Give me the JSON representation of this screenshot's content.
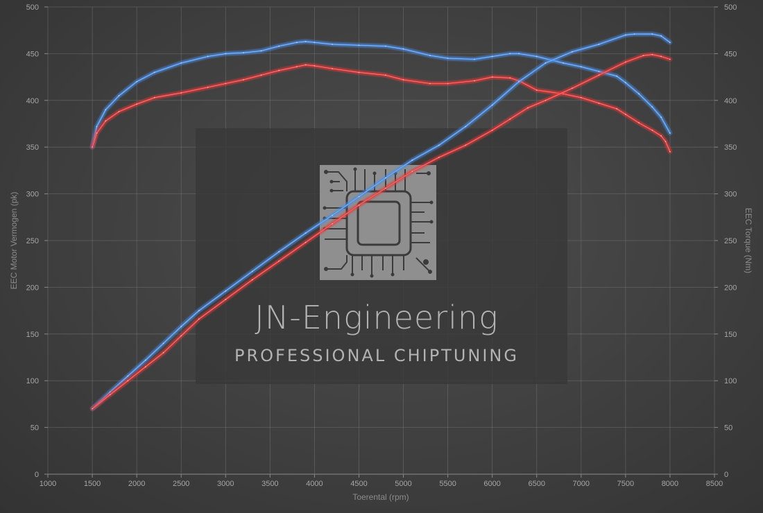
{
  "chart_data": {
    "type": "line",
    "xlabel": "Toerental (rpm)",
    "ylabel": "EEC Motor Vermogen (pk)",
    "y2label": "EEC Torque (Nm)",
    "xlim": [
      1000,
      8500
    ],
    "ylim": [
      0,
      500
    ],
    "y2lim": [
      0,
      500
    ],
    "xticks": [
      1000,
      1500,
      2000,
      2500,
      3000,
      3500,
      4000,
      4500,
      5000,
      5500,
      6000,
      6500,
      7000,
      7500,
      8000,
      8500
    ],
    "yticks": [
      0,
      50,
      100,
      150,
      200,
      250,
      300,
      350,
      400,
      450,
      500
    ],
    "grid": true,
    "series": [
      {
        "color": "#4c8ee6",
        "axis": "right",
        "x": [
          1500,
          1550,
          1650,
          1800,
          2000,
          2200,
          2500,
          2800,
          3000,
          3200,
          3400,
          3600,
          3800,
          3900,
          4000,
          4200,
          4500,
          4800,
          5000,
          5300,
          5500,
          5800,
          6000,
          6200,
          6300,
          6500,
          6800,
          7000,
          7200,
          7400,
          7500,
          7650,
          7800,
          7900,
          8000
        ],
        "values": [
          350,
          372,
          390,
          405,
          420,
          430,
          440,
          447,
          450,
          451,
          453,
          458,
          462,
          463,
          462,
          460,
          459,
          458,
          455,
          448,
          445,
          444,
          447,
          450,
          450,
          447,
          440,
          436,
          431,
          426,
          419,
          407,
          393,
          382,
          365
        ]
      },
      {
        "color": "#e63a3a",
        "axis": "right",
        "x": [
          1500,
          1550,
          1650,
          1800,
          2000,
          2200,
          2500,
          2800,
          3000,
          3200,
          3400,
          3600,
          3800,
          3900,
          4000,
          4200,
          4500,
          4800,
          5000,
          5300,
          5500,
          5800,
          6000,
          6200,
          6300,
          6500,
          6800,
          7000,
          7200,
          7400,
          7500,
          7650,
          7800,
          7900,
          7950,
          8000
        ],
        "values": [
          350,
          365,
          378,
          388,
          396,
          403,
          408,
          414,
          418,
          422,
          427,
          432,
          436,
          438,
          437,
          434,
          430,
          427,
          422,
          418,
          418,
          421,
          425,
          424,
          421,
          411,
          407,
          403,
          397,
          391,
          385,
          376,
          368,
          362,
          356,
          345
        ]
      },
      {
        "color": "#4c8ee6",
        "axis": "left",
        "x": [
          1500,
          1700,
          1900,
          2100,
          2300,
          2500,
          2700,
          3000,
          3300,
          3600,
          3900,
          4200,
          4500,
          4800,
          5100,
          5400,
          5700,
          6000,
          6300,
          6600,
          6900,
          7200,
          7500,
          7600,
          7800,
          7900,
          8000
        ],
        "values": [
          70,
          88,
          105,
          122,
          140,
          158,
          175,
          196,
          217,
          238,
          258,
          277,
          297,
          317,
          336,
          352,
          372,
          395,
          420,
          440,
          452,
          460,
          470,
          471,
          471,
          469,
          462
        ]
      },
      {
        "color": "#e63a3a",
        "axis": "left",
        "x": [
          1500,
          1700,
          1900,
          2100,
          2300,
          2500,
          2700,
          3000,
          3300,
          3600,
          3900,
          4200,
          4500,
          4800,
          5100,
          5400,
          5700,
          6000,
          6200,
          6400,
          6600,
          6900,
          7200,
          7500,
          7700,
          7800,
          7900,
          8000
        ],
        "values": [
          70,
          85,
          100,
          115,
          130,
          148,
          166,
          187,
          208,
          228,
          248,
          268,
          288,
          306,
          324,
          339,
          352,
          368,
          380,
          392,
          400,
          413,
          427,
          441,
          448,
          449,
          447,
          444
        ]
      }
    ]
  },
  "watermark": {
    "title": "JN-Engineering",
    "subtitle": "PROFESSIONAL CHIPTUNING",
    "logo_icon": "circuit-chip-icon"
  }
}
